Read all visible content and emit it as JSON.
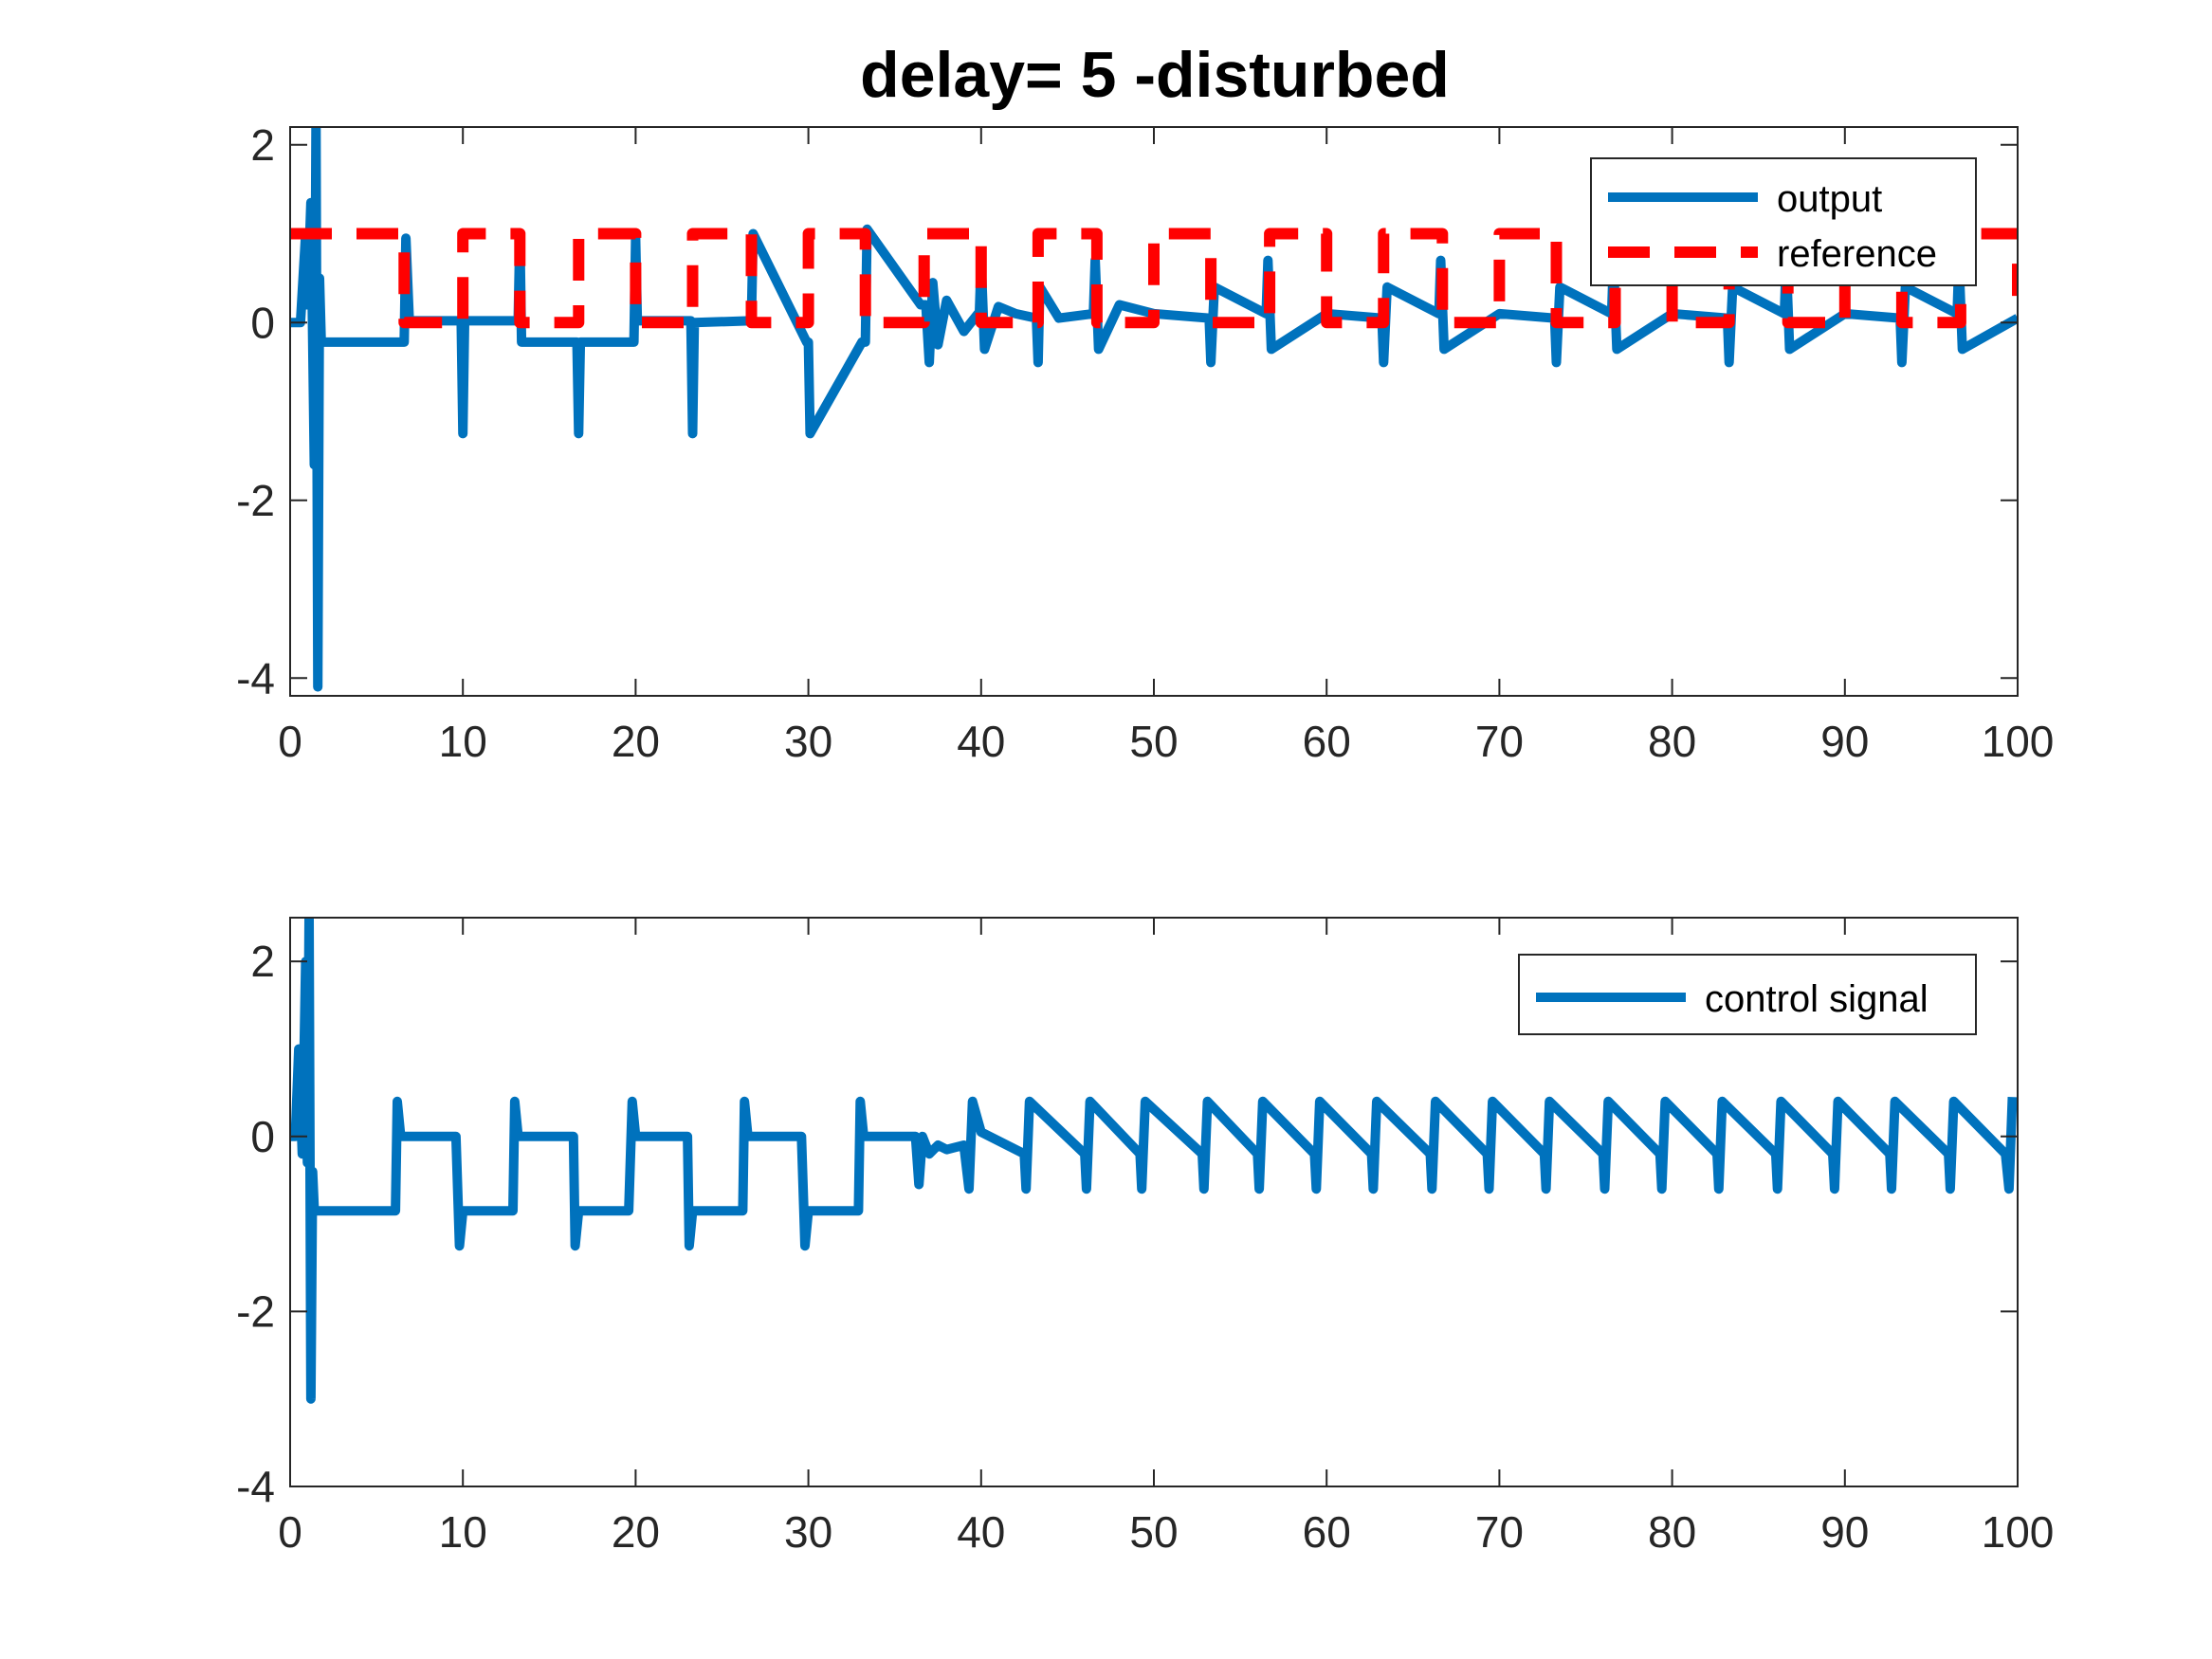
{
  "figure": {
    "title": "delay= 5  -disturbed"
  },
  "colors": {
    "output": "#0072BD",
    "reference": "#FF0000",
    "control": "#0072BD",
    "axes": "#262626",
    "background": "#FFFFFF"
  },
  "chart_data": [
    {
      "type": "line",
      "title": "delay= 5  -disturbed",
      "xlabel": "",
      "ylabel": "",
      "xlim": [
        0,
        100
      ],
      "ylim": [
        -4.2,
        2.2
      ],
      "xticks": [
        0,
        10,
        20,
        30,
        40,
        50,
        60,
        70,
        80,
        90,
        100
      ],
      "yticks": [
        -4,
        -2,
        0,
        2
      ],
      "xtick_labels": [
        "0",
        "10",
        "20",
        "30",
        "40",
        "50",
        "60",
        "70",
        "80",
        "90",
        "100"
      ],
      "ytick_labels": [
        "-4",
        "-2",
        "0",
        "2"
      ],
      "grid": false,
      "legend_position": "top-right",
      "series": [
        {
          "name": "output",
          "style": "solid",
          "x": [
            0,
            0.6,
            0.9,
            1.0,
            1.2,
            1.4,
            1.5,
            1.6,
            1.7,
            1.8,
            2.0,
            2.4,
            6.6,
            6.7,
            6.9,
            9.9,
            10.0,
            10.1,
            10.2,
            13.2,
            13.3,
            13.4,
            16.6,
            16.7,
            16.8,
            16.9,
            19.9,
            20.0,
            20.1,
            23.2,
            23.3,
            23.4,
            26.6,
            26.7,
            26.8,
            29.9,
            30.0,
            30.1,
            33.1,
            33.3,
            33.4,
            36.5,
            36.6,
            36.8,
            37.0,
            37.2,
            37.5,
            38.0,
            39.0,
            39.9,
            40.0,
            40.2,
            41.0,
            42.0,
            43.2,
            43.3,
            43.4,
            44.5,
            46.5,
            46.6,
            46.8,
            48.0,
            50.0,
            53.2,
            53.3,
            53.5,
            56.5,
            56.6,
            56.8,
            60.0,
            63.2,
            63.3,
            63.5,
            66.5,
            66.6,
            66.8,
            70.0,
            73.2,
            73.3,
            73.5,
            76.5,
            76.6,
            76.8,
            80.0,
            83.2,
            83.3,
            83.5,
            86.5,
            86.6,
            86.8,
            90.0,
            93.2,
            93.3,
            93.5,
            96.5,
            96.6,
            96.8,
            100.0
          ],
          "y": [
            0,
            0,
            1.0,
            0.2,
            1.35,
            -1.6,
            2.25,
            -4.1,
            0.5,
            -0.2,
            -0.22,
            -0.22,
            -0.22,
            0.95,
            0.02,
            0.02,
            -1.25,
            0.0,
            0.02,
            0.02,
            1.0,
            -0.22,
            -0.22,
            -1.25,
            -0.22,
            -0.22,
            -0.22,
            0.95,
            0.02,
            0.02,
            -1.25,
            0.0,
            0.02,
            0.02,
            1.0,
            -0.22,
            -0.22,
            -1.25,
            -0.22,
            -0.22,
            1.05,
            0.2,
            0.2,
            0.2,
            -0.45,
            0.45,
            -0.25,
            0.25,
            -0.1,
            0.12,
            0.7,
            -0.3,
            0.18,
            0.1,
            0.05,
            -0.45,
            0.4,
            0.05,
            0.1,
            0.7,
            -0.3,
            0.2,
            0.1,
            0.05,
            -0.45,
            0.4,
            0.1,
            0.7,
            -0.3,
            0.1,
            0.05,
            -0.45,
            0.4,
            0.1,
            0.7,
            -0.3,
            0.1,
            0.05,
            -0.45,
            0.4,
            0.1,
            0.7,
            -0.3,
            0.1,
            0.05,
            -0.45,
            0.4,
            0.1,
            0.7,
            -0.3,
            0.1,
            0.05,
            -0.45,
            0.4,
            0.1,
            0.7,
            -0.3,
            0.05
          ]
        },
        {
          "name": "reference",
          "style": "dashed",
          "x": [
            0,
            6.6,
            6.6,
            10.0,
            10.0,
            13.3,
            13.3,
            16.7,
            16.7,
            20.0,
            20.0,
            23.3,
            23.3,
            26.7,
            26.7,
            30.0,
            30.0,
            33.3,
            33.3,
            36.7,
            36.7,
            40.0,
            40.0,
            43.3,
            43.3,
            46.7,
            46.7,
            50.0,
            50.0,
            53.3,
            53.3,
            56.7,
            56.7,
            60.0,
            60.0,
            63.3,
            63.3,
            66.7,
            66.7,
            70.0,
            70.0,
            73.3,
            73.3,
            76.7,
            76.7,
            80.0,
            80.0,
            83.3,
            83.3,
            86.7,
            86.7,
            90.0,
            90.0,
            93.3,
            93.3,
            96.7,
            96.7,
            100.0,
            100.0
          ],
          "y": [
            1,
            1,
            0,
            0,
            1,
            1,
            0,
            0,
            1,
            1,
            0,
            0,
            1,
            1,
            0,
            0,
            1,
            1,
            0,
            0,
            1,
            1,
            0,
            0,
            1,
            1,
            0,
            0,
            1,
            1,
            0,
            0,
            1,
            1,
            0,
            0,
            1,
            1,
            0,
            0,
            1,
            1,
            0,
            0,
            1,
            1,
            0,
            0,
            1,
            1,
            0,
            0,
            1,
            1,
            0,
            0,
            1,
            1,
            0.3
          ]
        }
      ]
    },
    {
      "type": "line",
      "title": "",
      "xlabel": "",
      "ylabel": "",
      "xlim": [
        0,
        100
      ],
      "ylim": [
        -4,
        2.5
      ],
      "xticks": [
        0,
        10,
        20,
        30,
        40,
        50,
        60,
        70,
        80,
        90,
        100
      ],
      "yticks": [
        -4,
        -2,
        0,
        2
      ],
      "xtick_labels": [
        "0",
        "10",
        "20",
        "30",
        "40",
        "50",
        "60",
        "70",
        "80",
        "90",
        "100"
      ],
      "ytick_labels": [
        "-4",
        "-2",
        "0",
        "2"
      ],
      "grid": false,
      "legend_position": "top-right",
      "series": [
        {
          "name": "control signal",
          "style": "solid",
          "x": [
            0,
            0.3,
            0.5,
            0.7,
            0.9,
            1.0,
            1.1,
            1.2,
            1.3,
            1.4,
            1.5,
            1.6,
            6.1,
            6.2,
            6.4,
            9.6,
            9.8,
            10.0,
            12.9,
            13.0,
            13.2,
            16.4,
            16.5,
            16.7,
            19.6,
            19.8,
            20.0,
            23.0,
            23.1,
            23.3,
            26.2,
            26.3,
            26.5,
            29.6,
            29.8,
            30.0,
            32.9,
            33.0,
            33.2,
            36.2,
            36.4,
            36.6,
            37.0,
            37.5,
            38.0,
            39.0,
            39.3,
            39.5,
            40.0,
            42.5,
            42.6,
            42.8,
            46.0,
            46.1,
            46.3,
            49.2,
            49.3,
            49.5,
            52.8,
            52.9,
            53.1,
            56.0,
            56.1,
            56.3,
            59.3,
            59.4,
            59.6,
            62.6,
            62.7,
            62.9,
            66.0,
            66.1,
            66.3,
            69.3,
            69.4,
            69.6,
            72.6,
            72.7,
            72.9,
            76.0,
            76.1,
            76.3,
            79.3,
            79.4,
            79.6,
            82.6,
            82.7,
            82.9,
            86.0,
            86.1,
            86.3,
            89.3,
            89.4,
            89.6,
            92.6,
            92.7,
            92.9,
            96.0,
            96.1,
            96.3,
            99.3,
            99.5,
            99.7
          ],
          "y": [
            0,
            0,
            1.0,
            -0.2,
            2.0,
            -0.3,
            2.5,
            -3.0,
            -0.4,
            -0.85,
            -0.85,
            -0.85,
            -0.85,
            0.4,
            0.0,
            0.0,
            -1.25,
            -0.85,
            -0.85,
            0.4,
            0.0,
            0.0,
            -1.25,
            -0.85,
            -0.85,
            0.4,
            0.0,
            0.0,
            -1.25,
            -0.85,
            -0.85,
            0.4,
            0.0,
            0.0,
            -1.25,
            -0.85,
            -0.85,
            0.4,
            0.0,
            0.0,
            -0.55,
            0.0,
            -0.2,
            -0.1,
            -0.15,
            -0.1,
            -0.6,
            0.4,
            0.05,
            -0.2,
            -0.6,
            0.4,
            -0.2,
            -0.6,
            0.4,
            -0.2,
            -0.6,
            0.4,
            -0.2,
            -0.6,
            0.4,
            -0.2,
            -0.6,
            0.4,
            -0.2,
            -0.6,
            0.4,
            -0.2,
            -0.6,
            0.4,
            -0.2,
            -0.6,
            0.4,
            -0.2,
            -0.6,
            0.4,
            -0.2,
            -0.6,
            0.4,
            -0.2,
            -0.6,
            0.4,
            -0.2,
            -0.6,
            0.4,
            -0.2,
            -0.6,
            0.4,
            -0.2,
            -0.6,
            0.4,
            -0.2,
            -0.6,
            0.4,
            -0.2,
            -0.6,
            0.4,
            -0.2,
            -0.6,
            0.4,
            -0.2,
            -0.6,
            0.45
          ]
        }
      ]
    }
  ]
}
